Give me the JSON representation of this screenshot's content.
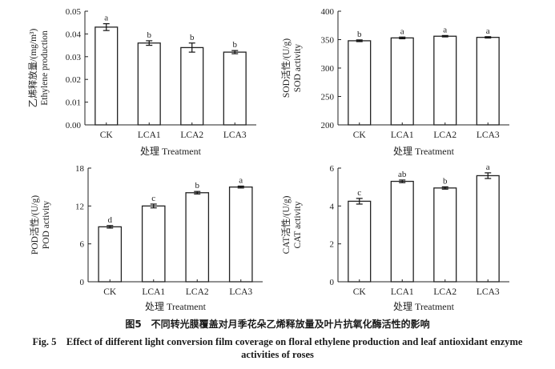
{
  "chart_data": [
    {
      "type": "bar",
      "title": "",
      "categories": [
        "CK",
        "LCA1",
        "LCA2",
        "LCA3"
      ],
      "values": [
        0.043,
        0.036,
        0.034,
        0.032
      ],
      "errors": [
        0.0015,
        0.001,
        0.002,
        0.0007
      ],
      "letters": [
        "a",
        "b",
        "b",
        "b"
      ],
      "ylim": [
        0,
        0.05
      ],
      "yticks": [
        "0.00",
        "0.01",
        "0.02",
        "0.03",
        "0.04",
        "0.05"
      ],
      "ylabel_cn": "乙烯释放量/(mg/m³)",
      "ylabel_en": "Ethylene production",
      "xlabel": "处理 Treatment"
    },
    {
      "type": "bar",
      "title": "",
      "categories": [
        "CK",
        "LCA1",
        "LCA2",
        "LCA3"
      ],
      "values": [
        348,
        353,
        356,
        354
      ],
      "errors": [
        1.5,
        1.5,
        1.2,
        1.2
      ],
      "letters": [
        "b",
        "a",
        "a",
        "a"
      ],
      "ylim": [
        200,
        400
      ],
      "yticks": [
        "200",
        "250",
        "300",
        "350",
        "400"
      ],
      "ylabel_cn": "SOD活性/(U/g)",
      "ylabel_en": "SOD activity",
      "xlabel": "处理 Treatment"
    },
    {
      "type": "bar",
      "title": "",
      "categories": [
        "CK",
        "LCA1",
        "LCA2",
        "LCA3"
      ],
      "values": [
        8.7,
        12.0,
        14.1,
        15.0
      ],
      "errors": [
        0.2,
        0.3,
        0.2,
        0.15
      ],
      "letters": [
        "d",
        "c",
        "b",
        "a"
      ],
      "ylim": [
        0,
        18
      ],
      "yticks": [
        "0",
        "6",
        "12",
        "18"
      ],
      "ylabel_cn": "POD活性/(U/g)",
      "ylabel_en": "POD activity",
      "xlabel": "处理 Treatment"
    },
    {
      "type": "bar",
      "title": "",
      "categories": [
        "CK",
        "LCA1",
        "LCA2",
        "LCA3"
      ],
      "values": [
        4.25,
        5.3,
        4.95,
        5.6
      ],
      "errors": [
        0.15,
        0.07,
        0.06,
        0.15
      ],
      "letters": [
        "c",
        "ab",
        "b",
        "a"
      ],
      "ylim": [
        0,
        6
      ],
      "yticks": [
        "0",
        "2",
        "4",
        "6"
      ],
      "ylabel_cn": "CAT活性/(U/g)",
      "ylabel_en": "CAT activity",
      "xlabel": "处理 Treatment"
    }
  ],
  "caption": {
    "cn": "图5　不同转光膜覆盖对月季花朵乙烯释放量及叶片抗氧化酶活性的影响",
    "en_line1": "Fig. 5　Effect of different light conversion film coverage on floral ethylene production and leaf antioxidant enzyme",
    "en_line2": "activities of roses"
  }
}
